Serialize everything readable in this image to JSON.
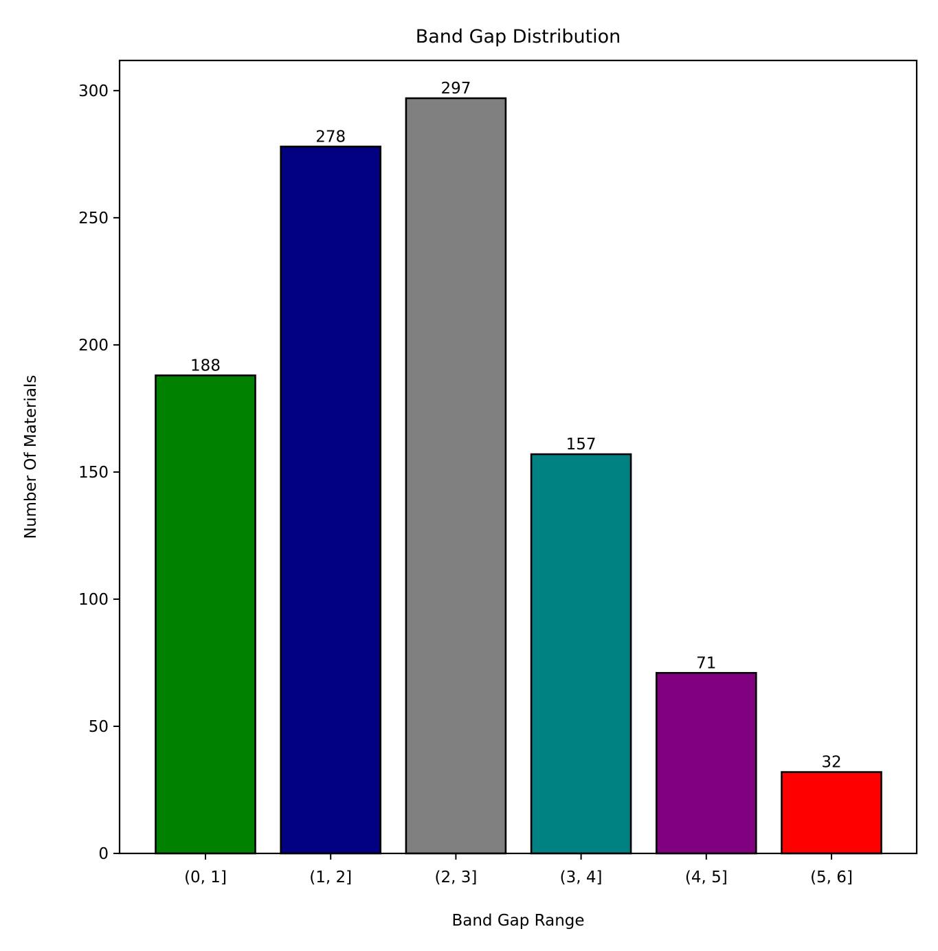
{
  "chart_data": {
    "type": "bar",
    "title": "Band Gap Distribution",
    "xlabel": "Band Gap Range",
    "ylabel": "Number Of Materials",
    "categories": [
      "(0, 1]",
      "(1, 2]",
      "(2, 3]",
      "(3, 4]",
      "(4, 5]",
      "(5, 6]"
    ],
    "values": [
      188,
      278,
      297,
      157,
      71,
      32
    ],
    "data_labels": [
      "188",
      "278",
      "297",
      "157",
      "71",
      "32"
    ],
    "colors": [
      "#008000",
      "#000080",
      "#808080",
      "#008080",
      "#800080",
      "#ff0000"
    ],
    "edge_color": "#000000",
    "ylim": [
      0,
      311.85
    ],
    "yticks": [
      0,
      50,
      100,
      150,
      200,
      250,
      300
    ],
    "ytick_labels": [
      "0",
      "50",
      "100",
      "150",
      "200",
      "250",
      "300"
    ],
    "grid": false,
    "legend": null
  }
}
